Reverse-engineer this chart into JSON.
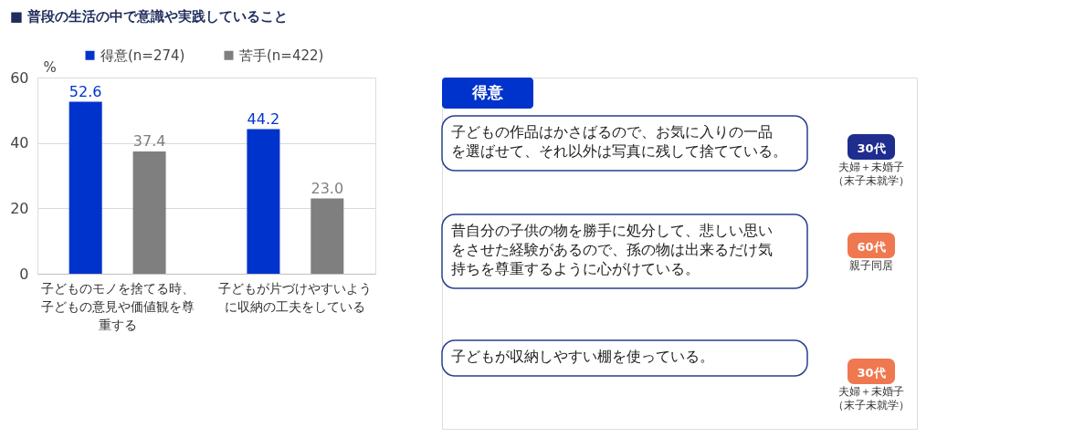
{
  "chart_data": [
    {
      "type": "bar",
      "title": "■ 普段の生活の中で意識や実践していること",
      "ylabel": "%",
      "categories": [
        "子どものモノを捨てる時、子どもの意見や価値観を尊重する",
        "子どもが片づけやすいように収納の工夫をしている"
      ],
      "series": [
        {
          "name": "得意(n=274)",
          "color": "#0033cc",
          "values": [
            52.6,
            44.2
          ],
          "value_labels": [
            "52.6",
            "44.2"
          ]
        },
        {
          "name": "苦手(n=422)",
          "color": "#7f7f7f",
          "values": [
            37.4,
            23.0
          ],
          "value_labels": [
            "37.4",
            "23.0"
          ]
        }
      ],
      "ylim": [
        0,
        60
      ],
      "yticks": [
        0,
        20,
        40,
        60
      ],
      "grid": "y",
      "legend": "top"
    },
    {
      "type": "other",
      "title": "得意",
      "annotations": [
        "子どもの作品はかさばるので、お気に入りの一品を選ばせて、それ以外は写真に残して捨てている。",
        "30代",
        "夫婦＋未婚子（末子未就学）",
        "昔自分の子供の物を勝手に処分して、悲しい思いをさせた経験があるので、孫の物は出来るだけ気持ちを尊重するように心がけている。",
        "60代",
        "親子同居",
        "子どもが収納しやすい棚を使っている。",
        "30代",
        "夫婦＋未婚子（末子未就学）"
      ]
    }
  ]
}
